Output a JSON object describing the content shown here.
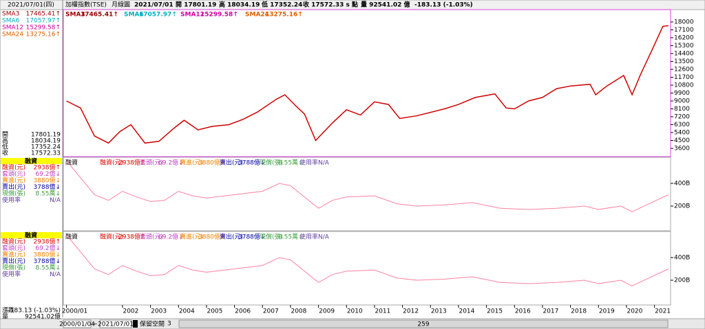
{
  "header": {
    "left_date": "2021/07/01(四)",
    "items": [
      "加權指數(TSE)",
      "月線圖",
      "2021/07/01",
      "開 17801.19",
      "高 18034.19",
      "低 17352.24",
      "收 17572.33 s 點",
      "量 92541.02 億",
      "-183.13 (-1.03%)"
    ]
  },
  "sma": [
    {
      "name": "SMA3",
      "value": "17465.41↑",
      "color": "#a00000"
    },
    {
      "name": "SMA6",
      "value": "17057.97↑",
      "color": "#00b0c0"
    },
    {
      "name": "SMA12",
      "value": "15299.58↑",
      "color": "#d000a0"
    },
    {
      "name": "SMA24",
      "value": "13275.16↑",
      "color": "#e06000"
    }
  ],
  "ohlc": [
    {
      "label": "開",
      "value": "17801.19"
    },
    {
      "label": "高",
      "value": "18034.19"
    },
    {
      "label": "低",
      "value": "17352.24"
    },
    {
      "label": "收",
      "value": "17572.33"
    }
  ],
  "margin_panels": [
    {
      "title": "融資",
      "rows": [
        {
          "name": "融資(元)",
          "value": "2938億↑",
          "color": "#e00000"
        },
        {
          "name": "套頭(元)",
          "value": "69.2億↓",
          "color": "#c040c0"
        },
        {
          "name": "賣進(元)",
          "value": "3880億↓",
          "color": "#f08000"
        },
        {
          "name": "賣出(元)",
          "value": "3788億↓",
          "color": "#0000a0"
        },
        {
          "name": "現償(張)",
          "value": "8.55萬↓",
          "color": "#40a040"
        },
        {
          "name": "使用率",
          "value": "N/A",
          "color": "#6040a0"
        }
      ]
    },
    {
      "title": "融資",
      "rows": [
        {
          "name": "融資(元)",
          "value": "2938億↑",
          "color": "#e00000"
        },
        {
          "name": "套頭(元)",
          "value": "69.2億↓",
          "color": "#c040c0"
        },
        {
          "name": "賣進(元)",
          "value": "3880億↓",
          "color": "#f08000"
        },
        {
          "name": "賣出(元)",
          "value": "3788億↓",
          "color": "#0000a0"
        },
        {
          "name": "現償(張)",
          "value": "8.55萬↓",
          "color": "#40a040"
        },
        {
          "name": "使用率",
          "value": "N/A",
          "color": "#6040a0"
        }
      ]
    }
  ],
  "footer_left": [
    {
      "label": "漲跌",
      "value": "-183.13 (-1.03%)"
    },
    {
      "label": "量",
      "value": "92541.02億"
    }
  ],
  "bottom_bar": {
    "start": "2000/01/04",
    "sep": "~",
    "end": "2021/07/01",
    "reserve": "保留空間",
    "reserve_value": "3",
    "count": "259"
  },
  "chart_data": [
    {
      "type": "line",
      "color": "#d00000",
      "x": [
        2000.0,
        2000.5,
        2001.0,
        2001.5,
        2001.9,
        2002.3,
        2002.8,
        2003.3,
        2003.8,
        2004.2,
        2004.7,
        2005.2,
        2005.8,
        2006.3,
        2006.8,
        2007.5,
        2007.8,
        2008.2,
        2008.5,
        2008.9,
        2009.5,
        2010.0,
        2010.5,
        2011.0,
        2011.5,
        2011.9,
        2012.5,
        2013.0,
        2013.5,
        2014.0,
        2014.6,
        2015.3,
        2015.7,
        2016.0,
        2016.5,
        2017.0,
        2017.5,
        2018.0,
        2018.7,
        2018.9,
        2019.3,
        2019.9,
        2020.2,
        2020.5,
        2020.9,
        2021.3,
        2021.5
      ],
      "values": [
        9000,
        8200,
        5000,
        4200,
        5500,
        6300,
        4200,
        4400,
        5800,
        6800,
        5700,
        6100,
        6300,
        6900,
        7700,
        9200,
        9700,
        8400,
        7500,
        4500,
        6500,
        8000,
        7400,
        8900,
        8600,
        7000,
        7300,
        7700,
        8100,
        8600,
        9400,
        9800,
        8200,
        8100,
        9000,
        9400,
        10400,
        10700,
        10900,
        9700,
        10700,
        11900,
        9700,
        12000,
        14700,
        17500,
        17572
      ],
      "xlim": [
        2000,
        2021.6
      ],
      "xticks": [
        {
          "value": 2000,
          "label": "2000/01"
        },
        2002,
        2003,
        2004,
        2005,
        2006,
        2007,
        2008,
        2009,
        2010,
        2011,
        2012,
        2013,
        2014,
        2015,
        2016,
        2017,
        2018,
        2019,
        2020,
        2021
      ],
      "ylim": [
        2660,
        19170
      ],
      "yticks": [
        3600,
        4500,
        5400,
        6300,
        7200,
        8100,
        9000,
        9900,
        10800,
        11700,
        12600,
        13500,
        14400,
        15300,
        16200,
        17100,
        18000
      ],
      "grid": false
    },
    {
      "type": "line",
      "color": "#ff80a0",
      "x": [
        2000.0,
        2000.5,
        2001.0,
        2001.5,
        2002.0,
        2002.5,
        2003.0,
        2003.5,
        2004.0,
        2004.5,
        2005.0,
        2006.0,
        2007.0,
        2007.6,
        2008.0,
        2008.6,
        2009.0,
        2009.5,
        2010.0,
        2011.0,
        2011.8,
        2012.5,
        2013.5,
        2014.5,
        2015.5,
        2016.5,
        2017.5,
        2018.5,
        2019.0,
        2019.8,
        2020.2,
        2020.8,
        2021.5
      ],
      "values": [
        600,
        450,
        300,
        250,
        330,
        280,
        240,
        250,
        330,
        290,
        270,
        300,
        330,
        400,
        380,
        260,
        180,
        250,
        280,
        290,
        220,
        200,
        210,
        230,
        180,
        170,
        180,
        200,
        170,
        200,
        150,
        220,
        300
      ],
      "xlim": [
        2000,
        2021.6
      ],
      "ylim": [
        -18,
        630
      ],
      "yticks": [
        {
          "value": 200,
          "label": "200B"
        },
        {
          "value": 400,
          "label": "400B"
        }
      ]
    }
  ]
}
